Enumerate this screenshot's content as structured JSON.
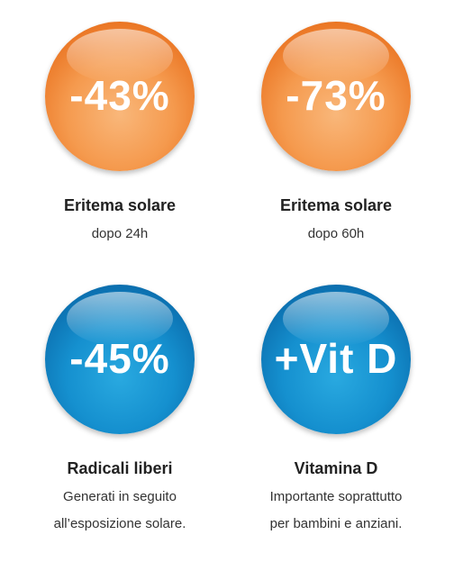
{
  "items": [
    {
      "badge": "-43%",
      "title": "Eritema solare",
      "lines": [
        "dopo 24h"
      ]
    },
    {
      "badge": "-73%",
      "title": "Eritema solare",
      "lines": [
        "dopo 60h"
      ]
    },
    {
      "badge": "-45%",
      "title": "Radicali liberi",
      "lines": [
        "Generati in seguito",
        "all’esposizione solare."
      ]
    },
    {
      "badge": "+Vit D",
      "title": "Vitamina D",
      "lines": [
        "Importante soprattutto",
        "per bambini e anziani."
      ]
    }
  ]
}
